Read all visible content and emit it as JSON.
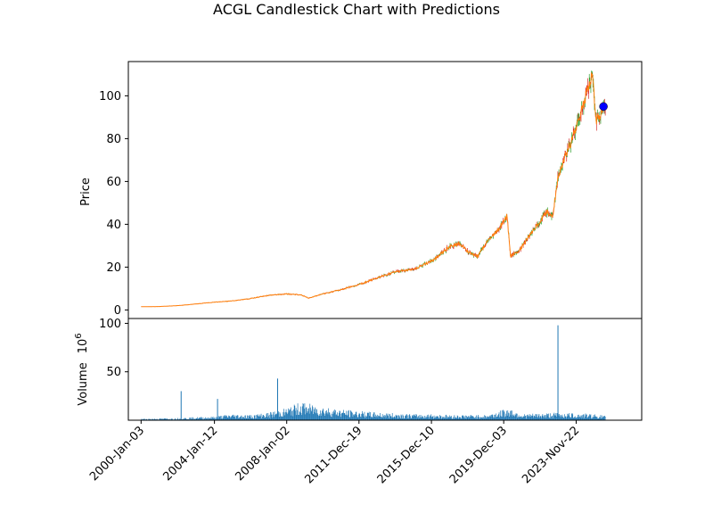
{
  "chart_data": {
    "type": "candlestick",
    "title": "ACGL Candlestick Chart with Predictions",
    "price_panel": {
      "ylabel": "Price",
      "ylim": [
        -4,
        116
      ],
      "yticks": [
        0,
        20,
        40,
        60,
        80,
        100
      ],
      "series": [
        {
          "name": "",
          "color": "#ff7f0e"
        }
      ],
      "candle_up_color": "#2ca02c",
      "candle_down_color": "#d62728",
      "prediction_color": "#0000ff"
    },
    "volume_panel": {
      "ylabel": "Volume",
      "ylabel_exponent": "10",
      "ylabel_exponent_power": "6",
      "ylim": [
        0,
        105
      ],
      "yticks": [
        50,
        100
      ],
      "color": "#1f77b4"
    },
    "x": {
      "tick_labels": [
        "2000-Jan-03",
        "2004-Jan-12",
        "2008-Jan-02",
        "2011-Dec-19",
        "2015-Dec-10",
        "2019-Dec-03",
        "2023-Nov-22"
      ],
      "xlim": [
        1999.3,
        2027.5
      ]
    },
    "price_points": [
      [
        2000.0,
        1.5
      ],
      [
        2001.0,
        1.6
      ],
      [
        2002.0,
        2.0
      ],
      [
        2003.0,
        2.8
      ],
      [
        2004.0,
        3.6
      ],
      [
        2005.0,
        4.2
      ],
      [
        2006.0,
        5.3
      ],
      [
        2007.0,
        6.8
      ],
      [
        2008.0,
        7.5
      ],
      [
        2008.8,
        7.0
      ],
      [
        2009.2,
        5.5
      ],
      [
        2010.0,
        7.5
      ],
      [
        2011.0,
        9.5
      ],
      [
        2012.0,
        12.0
      ],
      [
        2013.0,
        15.0
      ],
      [
        2014.0,
        18.0
      ],
      [
        2015.0,
        19.0
      ],
      [
        2016.0,
        23.0
      ],
      [
        2017.0,
        30.0
      ],
      [
        2017.5,
        31.0
      ],
      [
        2018.0,
        27.0
      ],
      [
        2018.5,
        25.0
      ],
      [
        2019.0,
        32.0
      ],
      [
        2019.5,
        36.0
      ],
      [
        2020.1,
        44.0
      ],
      [
        2020.3,
        25.0
      ],
      [
        2020.8,
        28.0
      ],
      [
        2021.5,
        37.0
      ],
      [
        2022.3,
        46.0
      ],
      [
        2022.6,
        43.0
      ],
      [
        2022.9,
        62.0
      ],
      [
        2023.3,
        72.0
      ],
      [
        2023.8,
        82.0
      ],
      [
        2024.3,
        96.0
      ],
      [
        2024.8,
        110.0
      ],
      [
        2025.0,
        88.0
      ],
      [
        2025.3,
        93.0
      ],
      [
        2025.5,
        96.0
      ]
    ],
    "predictions": [
      {
        "x": 2025.4,
        "y": 95.0
      }
    ],
    "volume_points": [
      [
        2000.0,
        1.0
      ],
      [
        2001.0,
        1.2
      ],
      [
        2002.0,
        1.5
      ],
      [
        2002.2,
        30.0
      ],
      [
        2003.0,
        2.0
      ],
      [
        2004.0,
        2.5
      ],
      [
        2004.2,
        22.0
      ],
      [
        2005.0,
        4.0
      ],
      [
        2006.0,
        3.5
      ],
      [
        2007.0,
        5.0
      ],
      [
        2007.5,
        43.0
      ],
      [
        2008.0,
        8.0
      ],
      [
        2008.8,
        12.0
      ],
      [
        2009.5,
        10.0
      ],
      [
        2010.0,
        9.0
      ],
      [
        2011.0,
        7.0
      ],
      [
        2012.0,
        6.0
      ],
      [
        2013.0,
        5.0
      ],
      [
        2014.0,
        4.5
      ],
      [
        2015.0,
        4.0
      ],
      [
        2016.0,
        4.0
      ],
      [
        2017.0,
        3.5
      ],
      [
        2018.0,
        3.5
      ],
      [
        2019.0,
        3.5
      ],
      [
        2020.2,
        8.0
      ],
      [
        2021.0,
        4.0
      ],
      [
        2022.0,
        4.5
      ],
      [
        2022.9,
        98.0
      ],
      [
        2023.0,
        5.0
      ],
      [
        2024.0,
        4.5
      ],
      [
        2025.0,
        4.0
      ],
      [
        2025.5,
        3.0
      ]
    ]
  }
}
